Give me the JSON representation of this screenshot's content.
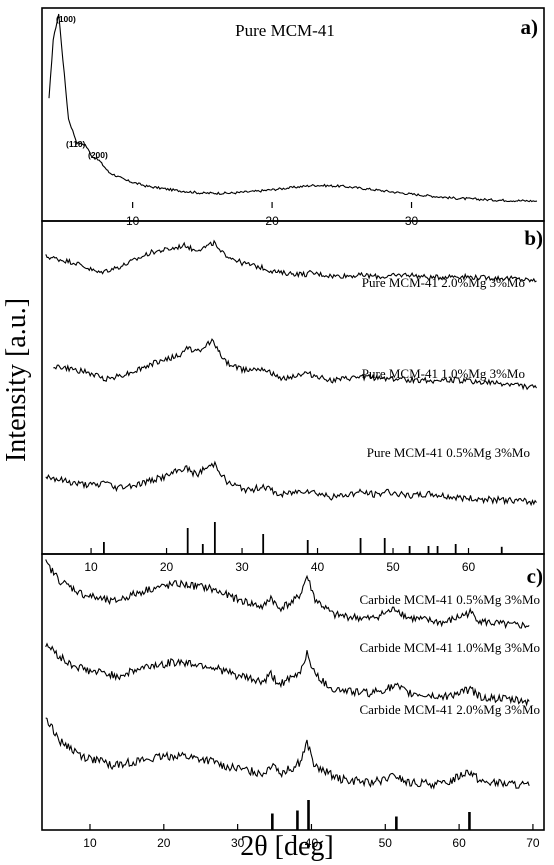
{
  "figure": {
    "ylabel": "Intensity [a.u.]",
    "xlabel": "2θ [deg]"
  },
  "chart_data": [
    {
      "type": "line",
      "panel_label": "a)",
      "title": "Pure MCM-41",
      "xlim": [
        3.5,
        39.5
      ],
      "x_ticks": [
        10,
        20,
        30
      ],
      "annotations": [
        {
          "text": "(100)",
          "x": 5.0
        },
        {
          "text": "(110)",
          "x": 6.6
        },
        {
          "text": "(200)",
          "x": 7.4
        }
      ],
      "series": [
        {
          "values": [
            [
              4.0,
              0.55
            ],
            [
              4.3,
              0.85
            ],
            [
              4.7,
              0.98
            ],
            [
              5.0,
              0.75
            ],
            [
              5.4,
              0.45
            ],
            [
              6.0,
              0.33
            ],
            [
              6.6,
              0.32
            ],
            [
              7.1,
              0.26
            ],
            [
              7.6,
              0.24
            ],
            [
              8.3,
              0.18
            ],
            [
              9.5,
              0.14
            ],
            [
              11,
              0.11
            ],
            [
              13,
              0.09
            ],
            [
              15,
              0.075
            ],
            [
              17,
              0.075
            ],
            [
              19,
              0.085
            ],
            [
              21,
              0.1
            ],
            [
              23,
              0.115
            ],
            [
              25,
              0.11
            ],
            [
              27,
              0.095
            ],
            [
              30,
              0.07
            ],
            [
              33,
              0.05
            ],
            [
              36,
              0.04
            ],
            [
              39,
              0.035
            ]
          ]
        }
      ]
    },
    {
      "type": "line",
      "panel_label": "b)",
      "xlim": [
        3.5,
        70
      ],
      "x_ticks": [
        10,
        20,
        30,
        40,
        50,
        60
      ],
      "series": [
        {
          "name": "Pure MCM-41 2.0%Mg 3%Mo",
          "values": [
            [
              4,
              0.8
            ],
            [
              8,
              0.72
            ],
            [
              11,
              0.6
            ],
            [
              14,
              0.68
            ],
            [
              18,
              0.85
            ],
            [
              21,
              0.9
            ],
            [
              22.5,
              0.94
            ],
            [
              23.5,
              0.88
            ],
            [
              24.8,
              0.9
            ],
            [
              26,
              0.95
            ],
            [
              26.3,
              0.97
            ],
            [
              27,
              0.86
            ],
            [
              30,
              0.72
            ],
            [
              32.8,
              0.66
            ],
            [
              33.3,
              0.64
            ],
            [
              35,
              0.6
            ],
            [
              38.5,
              0.58
            ],
            [
              39,
              0.6
            ],
            [
              42,
              0.56
            ],
            [
              46,
              0.57
            ],
            [
              48.5,
              0.55
            ],
            [
              52,
              0.58
            ],
            [
              55,
              0.54
            ],
            [
              58,
              0.56
            ],
            [
              62,
              0.54
            ],
            [
              66,
              0.53
            ],
            [
              69,
              0.5
            ]
          ]
        },
        {
          "name": "Pure MCM-41 1.0%Mg 3%Mo",
          "values": [
            [
              5,
              0.5
            ],
            [
              9,
              0.44
            ],
            [
              12,
              0.36
            ],
            [
              15,
              0.42
            ],
            [
              19,
              0.55
            ],
            [
              22,
              0.62
            ],
            [
              22.5,
              0.7
            ],
            [
              24.5,
              0.65
            ],
            [
              25.5,
              0.75
            ],
            [
              26.2,
              0.78
            ],
            [
              27.5,
              0.56
            ],
            [
              30,
              0.46
            ],
            [
              32.8,
              0.48
            ],
            [
              35,
              0.36
            ],
            [
              38.5,
              0.42
            ],
            [
              42,
              0.34
            ],
            [
              46,
              0.38
            ],
            [
              48.5,
              0.37
            ],
            [
              52,
              0.35
            ],
            [
              56,
              0.34
            ],
            [
              58,
              0.35
            ],
            [
              62,
              0.32
            ],
            [
              66,
              0.3
            ],
            [
              69,
              0.26
            ]
          ]
        },
        {
          "name": "Pure MCM-41 0.5%Mg 3%Mo",
          "values": [
            [
              4,
              0.32
            ],
            [
              8,
              0.25
            ],
            [
              11,
              0.23
            ],
            [
              11.8,
              0.28
            ],
            [
              13,
              0.21
            ],
            [
              16,
              0.24
            ],
            [
              20,
              0.32
            ],
            [
              22.5,
              0.4
            ],
            [
              24,
              0.33
            ],
            [
              24.8,
              0.38
            ],
            [
              26,
              0.42
            ],
            [
              26.4,
              0.44
            ],
            [
              28,
              0.26
            ],
            [
              31,
              0.18
            ],
            [
              32.8,
              0.23
            ],
            [
              35,
              0.14
            ],
            [
              38.5,
              0.19
            ],
            [
              42,
              0.12
            ],
            [
              45.8,
              0.17
            ],
            [
              48,
              0.14
            ],
            [
              49,
              0.18
            ],
            [
              52,
              0.13
            ],
            [
              55,
              0.15
            ],
            [
              58,
              0.12
            ],
            [
              62,
              0.1
            ],
            [
              66,
              0.09
            ],
            [
              69,
              0.07
            ]
          ]
        }
      ],
      "reference_sticks": [
        {
          "x": 11.7,
          "h": 0.3
        },
        {
          "x": 22.8,
          "h": 0.65
        },
        {
          "x": 24.8,
          "h": 0.25
        },
        {
          "x": 26.4,
          "h": 0.8
        },
        {
          "x": 32.8,
          "h": 0.5
        },
        {
          "x": 38.7,
          "h": 0.35
        },
        {
          "x": 45.7,
          "h": 0.4
        },
        {
          "x": 48.9,
          "h": 0.4
        },
        {
          "x": 52.2,
          "h": 0.2
        },
        {
          "x": 54.7,
          "h": 0.2
        },
        {
          "x": 55.9,
          "h": 0.2
        },
        {
          "x": 58.3,
          "h": 0.25
        },
        {
          "x": 64.4,
          "h": 0.18
        }
      ]
    },
    {
      "type": "line",
      "panel_label": "c)",
      "xlim": [
        3.5,
        71.5
      ],
      "x_ticks": [
        10,
        20,
        30,
        40,
        50,
        60,
        70
      ],
      "series": [
        {
          "name": "Carbide MCM-41 0.5%Mg 3%Mo",
          "values": [
            [
              4,
              0.9
            ],
            [
              6,
              0.76
            ],
            [
              9,
              0.66
            ],
            [
              13,
              0.6
            ],
            [
              18,
              0.7
            ],
            [
              22,
              0.74
            ],
            [
              26,
              0.71
            ],
            [
              30,
              0.62
            ],
            [
              33.5,
              0.56
            ],
            [
              34.5,
              0.64
            ],
            [
              35.5,
              0.55
            ],
            [
              37.5,
              0.6
            ],
            [
              38.5,
              0.66
            ],
            [
              39.4,
              0.8
            ],
            [
              40.5,
              0.62
            ],
            [
              43,
              0.5
            ],
            [
              48,
              0.47
            ],
            [
              51.5,
              0.55
            ],
            [
              53,
              0.48
            ],
            [
              58,
              0.44
            ],
            [
              61.5,
              0.52
            ],
            [
              63,
              0.45
            ],
            [
              67,
              0.42
            ],
            [
              69.5,
              0.42
            ]
          ]
        },
        {
          "name": "Carbide MCM-41 1.0%Mg 3%Mo",
          "values": [
            [
              4,
              0.66
            ],
            [
              7,
              0.52
            ],
            [
              10,
              0.46
            ],
            [
              14,
              0.43
            ],
            [
              18,
              0.5
            ],
            [
              22,
              0.53
            ],
            [
              26,
              0.5
            ],
            [
              30,
              0.43
            ],
            [
              33.5,
              0.38
            ],
            [
              34.5,
              0.44
            ],
            [
              35.5,
              0.37
            ],
            [
              37.5,
              0.41
            ],
            [
              38.5,
              0.46
            ],
            [
              39.4,
              0.6
            ],
            [
              40.5,
              0.43
            ],
            [
              43,
              0.33
            ],
            [
              48,
              0.3
            ],
            [
              51.5,
              0.35
            ],
            [
              53,
              0.3
            ],
            [
              58,
              0.27
            ],
            [
              61.5,
              0.33
            ],
            [
              63,
              0.27
            ],
            [
              67,
              0.25
            ],
            [
              69.5,
              0.24
            ]
          ]
        },
        {
          "name": "Carbide MCM-41 2.0%Mg 3%Mo",
          "values": [
            [
              4,
              0.52
            ],
            [
              6,
              0.35
            ],
            [
              9,
              0.24
            ],
            [
              13,
              0.18
            ],
            [
              18,
              0.22
            ],
            [
              22,
              0.25
            ],
            [
              26,
              0.21
            ],
            [
              30,
              0.15
            ],
            [
              33.5,
              0.12
            ],
            [
              34.8,
              0.2
            ],
            [
              35.8,
              0.12
            ],
            [
              37.5,
              0.16
            ],
            [
              38.5,
              0.2
            ],
            [
              39.4,
              0.34
            ],
            [
              40.5,
              0.16
            ],
            [
              44,
              0.08
            ],
            [
              48,
              0.05
            ],
            [
              51.5,
              0.1
            ],
            [
              53,
              0.05
            ],
            [
              58,
              0.04
            ],
            [
              61.3,
              0.14
            ],
            [
              63,
              0.06
            ],
            [
              67,
              0.04
            ],
            [
              69.5,
              0.03
            ]
          ]
        }
      ],
      "reference_sticks": [
        {
          "x": 34.7,
          "h": 0.55
        },
        {
          "x": 38.1,
          "h": 0.65
        },
        {
          "x": 39.6,
          "h": 1.0
        },
        {
          "x": 51.5,
          "h": 0.45
        },
        {
          "x": 61.4,
          "h": 0.6
        }
      ]
    }
  ]
}
